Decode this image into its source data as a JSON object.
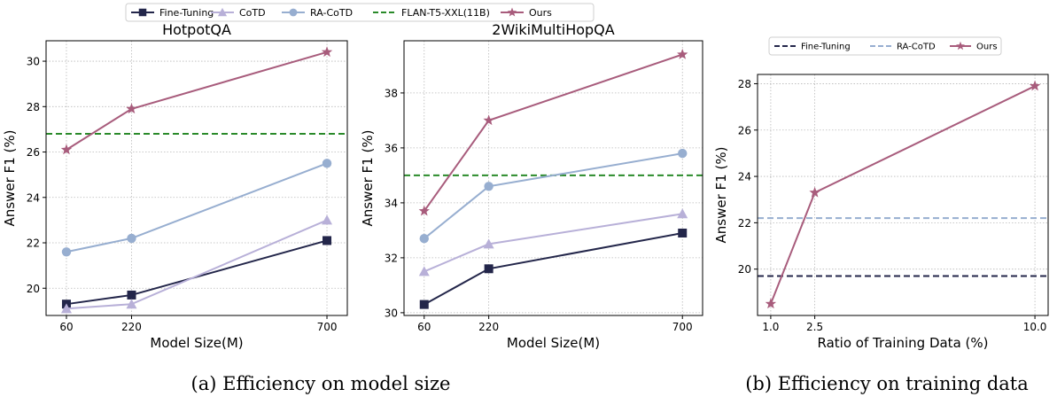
{
  "legend_top": [
    {
      "name": "Fine-Tuning",
      "color": "#23264a",
      "marker": "square",
      "dash": false
    },
    {
      "name": "CoTD",
      "color": "#b8b0d8",
      "marker": "triangle",
      "dash": false
    },
    {
      "name": "RA-CoTD",
      "color": "#97aed0",
      "marker": "circle",
      "dash": false
    },
    {
      "name": "FLAN-T5-XXL(11B)",
      "color": "#2a8a2a",
      "marker": "none",
      "dash": true
    },
    {
      "name": "Ours",
      "color": "#a85c7c",
      "marker": "star",
      "dash": false
    }
  ],
  "legend_right": [
    {
      "name": "Fine-Tuning",
      "color": "#23264a",
      "dash": true,
      "marker": "none"
    },
    {
      "name": "RA-CoTD",
      "color": "#97aed0",
      "dash": true,
      "marker": "none"
    },
    {
      "name": "Ours",
      "color": "#a85c7c",
      "dash": false,
      "marker": "star"
    }
  ],
  "captions": {
    "a": "(a) Efficiency on model size",
    "b": "(b) Efficiency on training data"
  },
  "chart_data": [
    {
      "type": "line",
      "title": "HotpotQA",
      "xlabel": "Model Size(M)",
      "ylabel": "Answer F1 (%)",
      "x": [
        60,
        220,
        700
      ],
      "xticks": [
        60,
        220,
        700
      ],
      "yticks": [
        20,
        22,
        24,
        26,
        28,
        30
      ],
      "xlim": [
        10,
        750
      ],
      "ylim": [
        18.8,
        30.9
      ],
      "grid": true,
      "series": [
        {
          "name": "Fine-Tuning",
          "values": [
            19.3,
            19.7,
            22.1
          ],
          "color": "#23264a",
          "marker": "square"
        },
        {
          "name": "CoTD",
          "values": [
            19.1,
            19.3,
            23.0
          ],
          "color": "#b8b0d8",
          "marker": "triangle"
        },
        {
          "name": "RA-CoTD",
          "values": [
            21.6,
            22.2,
            25.5
          ],
          "color": "#97aed0",
          "marker": "circle"
        },
        {
          "name": "Ours",
          "values": [
            26.1,
            27.9,
            30.4
          ],
          "color": "#a85c7c",
          "marker": "star"
        }
      ],
      "hlines": [
        {
          "name": "FLAN-T5-XXL(11B)",
          "value": 26.8,
          "color": "#2a8a2a"
        }
      ]
    },
    {
      "type": "line",
      "title": "2WikiMultiHopQA",
      "xlabel": "Model Size(M)",
      "ylabel": "Answer F1 (%)",
      "x": [
        60,
        220,
        700
      ],
      "xticks": [
        60,
        220,
        700
      ],
      "yticks": [
        30,
        32,
        34,
        36,
        38
      ],
      "xlim": [
        10,
        750
      ],
      "ylim": [
        29.9,
        39.9
      ],
      "grid": true,
      "series": [
        {
          "name": "Fine-Tuning",
          "values": [
            30.3,
            31.6,
            32.9
          ],
          "color": "#23264a",
          "marker": "square"
        },
        {
          "name": "CoTD",
          "values": [
            31.5,
            32.5,
            33.6
          ],
          "color": "#b8b0d8",
          "marker": "triangle"
        },
        {
          "name": "RA-CoTD",
          "values": [
            32.7,
            34.6,
            35.8
          ],
          "color": "#97aed0",
          "marker": "circle"
        },
        {
          "name": "Ours",
          "values": [
            33.7,
            37.0,
            39.4
          ],
          "color": "#a85c7c",
          "marker": "star"
        }
      ],
      "hlines": [
        {
          "name": "FLAN-T5-XXL(11B)",
          "value": 35.0,
          "color": "#2a8a2a"
        }
      ]
    },
    {
      "type": "line",
      "title": "",
      "xlabel": "Ratio of Training Data (%)",
      "ylabel": "Answer F1 (%)",
      "x": [
        1.0,
        2.5,
        10.0
      ],
      "xticks": [
        1.0,
        2.5,
        10.0
      ],
      "xticklabels": [
        "1.0",
        "2.5",
        "10.0"
      ],
      "yticks": [
        20,
        22,
        24,
        26,
        28
      ],
      "xlim": [
        0.55,
        10.45
      ],
      "ylim": [
        18.0,
        28.4
      ],
      "grid": true,
      "series": [
        {
          "name": "Ours",
          "values": [
            18.5,
            23.3,
            27.9
          ],
          "color": "#a85c7c",
          "marker": "star"
        }
      ],
      "hlines": [
        {
          "name": "Fine-Tuning",
          "value": 19.7,
          "color": "#23264a"
        },
        {
          "name": "RA-CoTD",
          "value": 22.2,
          "color": "#97aed0"
        }
      ]
    }
  ]
}
